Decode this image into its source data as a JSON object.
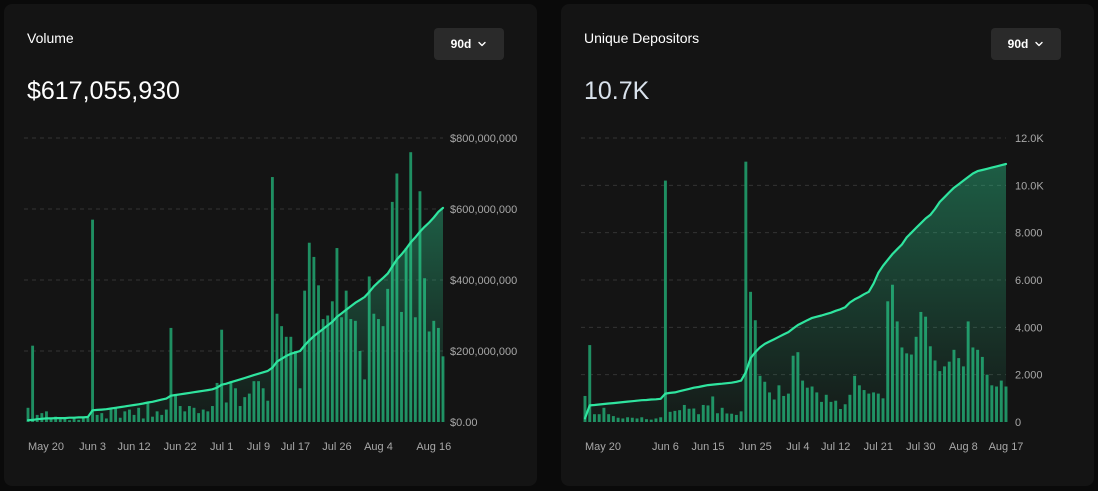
{
  "volume": {
    "title": "Volume",
    "total": "$617,055,930",
    "period": "90d",
    "chart_data": {
      "type": "bar+line",
      "title": "Volume",
      "ylim": [
        0,
        800000000
      ],
      "yticks": [
        0,
        200000000,
        400000000,
        600000000,
        800000000
      ],
      "ytick_labels": [
        "$0.00",
        "$200,000,000",
        "$400,000,000",
        "$600,000,000",
        "$800,000,000"
      ],
      "xtick_labels": [
        "May 20",
        "Jun 3",
        "Jun 12",
        "Jun 22",
        "Jul 1",
        "Jul 9",
        "Jul 17",
        "Jul 26",
        "Aug 4",
        "Aug 16"
      ],
      "xtick_days": [
        0,
        14,
        23,
        33,
        42,
        50,
        58,
        67,
        76,
        88
      ],
      "days": 91,
      "daily_volume": [
        40,
        215,
        20,
        25,
        30,
        10,
        15,
        8,
        10,
        5,
        12,
        6,
        10,
        12,
        570,
        20,
        25,
        10,
        35,
        40,
        12,
        30,
        35,
        20,
        40,
        10,
        55,
        15,
        30,
        20,
        35,
        265,
        75,
        45,
        30,
        45,
        40,
        25,
        35,
        30,
        45,
        110,
        260,
        55,
        115,
        95,
        45,
        70,
        80,
        115,
        115,
        95,
        60,
        690,
        305,
        270,
        240,
        240,
        200,
        95,
        370,
        505,
        465,
        385,
        290,
        300,
        340,
        490,
        295,
        370,
        290,
        285,
        200,
        120,
        410,
        305,
        290,
        270,
        375,
        620,
        700,
        310,
        490,
        760,
        295,
        650,
        405,
        255,
        285,
        265,
        185
      ],
      "cumulative_line": [
        5,
        6,
        8,
        9,
        10,
        10,
        11,
        11,
        11,
        12,
        12,
        13,
        13,
        14,
        33,
        34,
        35,
        36,
        38,
        40,
        42,
        44,
        46,
        48,
        50,
        52,
        55,
        57,
        60,
        63,
        66,
        74,
        76,
        78,
        80,
        82,
        84,
        86,
        88,
        90,
        92,
        97,
        105,
        108,
        112,
        116,
        120,
        124,
        128,
        132,
        136,
        140,
        144,
        153,
        170,
        178,
        186,
        192,
        196,
        200,
        216,
        230,
        242,
        252,
        262,
        272,
        282,
        296,
        306,
        316,
        326,
        336,
        344,
        352,
        366,
        382,
        394,
        406,
        418,
        438,
        458,
        472,
        488,
        506,
        520,
        536,
        550,
        562,
        576,
        592,
        603
      ],
      "line_unit": "$1,000,000",
      "bar_unit": "$1,000,000 (bar scale shared with axis)"
    }
  },
  "depositors": {
    "title": "Unique Depositors",
    "total": "10.7K",
    "period": "90d",
    "chart_data": {
      "type": "bar+line",
      "title": "Unique Depositors",
      "ylim": [
        0,
        12000
      ],
      "yticks": [
        0,
        2000,
        4000,
        6000,
        8000,
        10000,
        12000
      ],
      "ytick_labels": [
        "0",
        "2.000",
        "4.000",
        "6.000",
        "8.000",
        "10.0K",
        "12.0K"
      ],
      "xtick_labels": [
        "May 20",
        "Jun 6",
        "Jun 15",
        "Jun 25",
        "Jul 4",
        "Jul 12",
        "Jul 21",
        "Jul 30",
        "Aug 8",
        "Aug 17"
      ],
      "xtick_days": [
        0,
        17,
        26,
        36,
        45,
        53,
        62,
        71,
        80,
        89
      ],
      "days": 90,
      "daily_bars_scale_max": 12000,
      "daily_bars": [
        1100,
        3250,
        330,
        330,
        600,
        330,
        250,
        180,
        150,
        200,
        180,
        150,
        200,
        120,
        100,
        150,
        200,
        10200,
        430,
        470,
        500,
        720,
        560,
        570,
        330,
        720,
        700,
        1080,
        370,
        600,
        360,
        350,
        300,
        450,
        11000,
        5500,
        4300,
        1950,
        1700,
        1250,
        950,
        1550,
        1100,
        1200,
        2800,
        2950,
        1750,
        1450,
        1500,
        1250,
        850,
        1150,
        850,
        900,
        550,
        750,
        1150,
        1950,
        1550,
        1350,
        1200,
        1250,
        1200,
        1000,
        5100,
        5800,
        4250,
        3150,
        2900,
        2850,
        3600,
        4650,
        4450,
        3200,
        2600,
        2150,
        2350,
        2550,
        3050,
        2700,
        2350,
        4250,
        3150,
        3050,
        2750,
        2000,
        1550,
        1500,
        1750,
        1500
      ],
      "cumulative_line": [
        150,
        700,
        720,
        740,
        760,
        780,
        800,
        820,
        840,
        860,
        880,
        900,
        920,
        930,
        950,
        960,
        980,
        1200,
        1230,
        1250,
        1300,
        1350,
        1400,
        1450,
        1480,
        1520,
        1560,
        1580,
        1600,
        1620,
        1640,
        1660,
        1700,
        1750,
        2100,
        2700,
        2950,
        3150,
        3300,
        3400,
        3500,
        3600,
        3700,
        3800,
        3950,
        4100,
        4200,
        4300,
        4400,
        4450,
        4500,
        4560,
        4620,
        4700,
        4760,
        4850,
        5050,
        5180,
        5280,
        5400,
        5500,
        5850,
        6300,
        6600,
        6850,
        7100,
        7300,
        7500,
        7800,
        8000,
        8200,
        8400,
        8600,
        8750,
        9000,
        9300,
        9500,
        9700,
        9900,
        10050,
        10200,
        10350,
        10500,
        10600,
        10650,
        10700,
        10750,
        10800,
        10850,
        10900
      ]
    }
  }
}
